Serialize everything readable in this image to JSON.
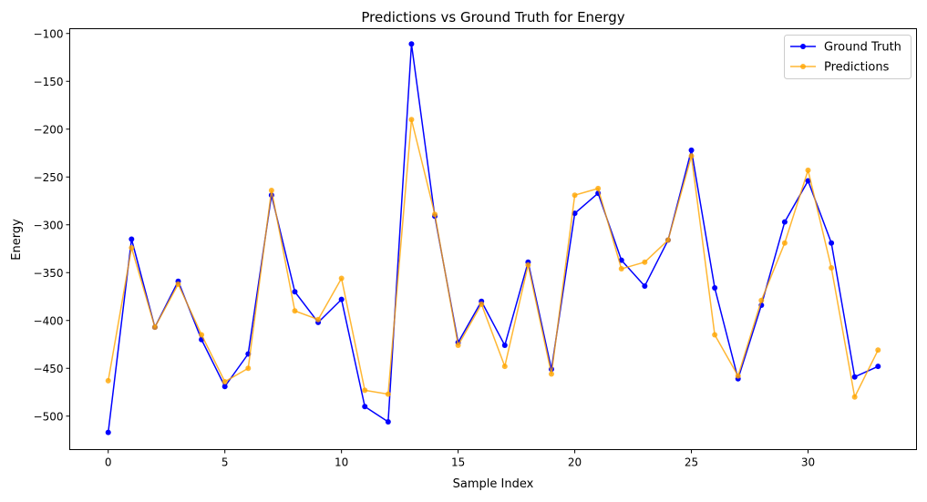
{
  "chart_data": {
    "type": "line",
    "title": "Predictions vs Ground Truth for Energy",
    "xlabel": "Sample Index",
    "ylabel": "Energy",
    "xlim": [
      -1.65,
      34.65
    ],
    "ylim": [
      -535,
      -95
    ],
    "xticks": [
      0,
      5,
      10,
      15,
      20,
      25,
      30
    ],
    "yticks": [
      -500,
      -450,
      -400,
      -350,
      -300,
      -250,
      -200,
      -150,
      -100
    ],
    "grid": false,
    "legend_position": "top-right",
    "x": [
      0,
      1,
      2,
      3,
      4,
      5,
      6,
      7,
      8,
      9,
      10,
      11,
      12,
      13,
      14,
      15,
      16,
      17,
      18,
      19,
      20,
      21,
      22,
      23,
      24,
      25,
      26,
      27,
      28,
      29,
      30,
      31,
      32,
      33
    ],
    "series": [
      {
        "name": "Ground Truth",
        "color": "#0000ff",
        "values": [
          -517,
          -315,
          -407,
          -359,
          -420,
          -469,
          -435,
          -269,
          -370,
          -402,
          -378,
          -490,
          -506,
          -111,
          -291,
          -423,
          -380,
          -426,
          -339,
          -451,
          -288,
          -267,
          -337,
          -364,
          -316,
          -222,
          -366,
          -461,
          -384,
          -297,
          -254,
          -319,
          -459,
          -448
        ]
      },
      {
        "name": "Predictions",
        "color": "#ffa500",
        "values": [
          -463,
          -324,
          -407,
          -362,
          -415,
          -464,
          -450,
          -264,
          -390,
          -399,
          -356,
          -473,
          -477,
          -190,
          -289,
          -426,
          -383,
          -448,
          -342,
          -456,
          -269,
          -262,
          -346,
          -339,
          -316,
          -228,
          -415,
          -458,
          -379,
          -319,
          -243,
          -345,
          -480,
          -431
        ]
      }
    ]
  }
}
